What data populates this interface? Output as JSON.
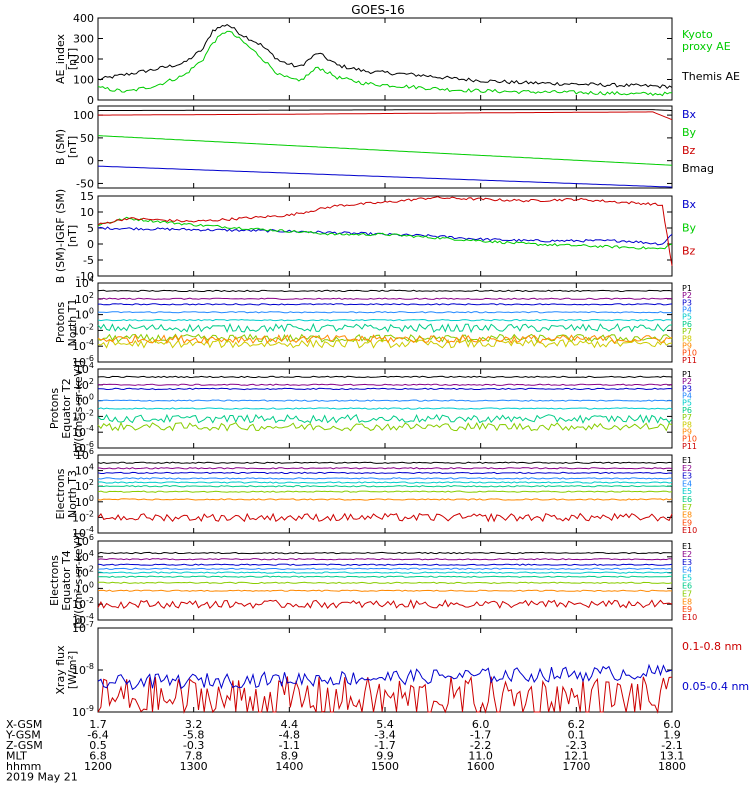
{
  "title": "GOES-16",
  "time": {
    "start": "2019-05-21 12:00",
    "end": "2019-05-21 18:00",
    "date_label": "2019 May 21",
    "hour_ticks": [
      "1200",
      "1300",
      "1400",
      "1500",
      "1600",
      "1700",
      "1800"
    ]
  },
  "footer": {
    "rows": [
      {
        "label": "X-GSM",
        "values": [
          "1.7",
          "3.2",
          "4.4",
          "5.4",
          "6.0",
          "6.2",
          "6.0"
        ]
      },
      {
        "label": "Y-GSM",
        "values": [
          "-6.4",
          "-5.8",
          "-4.8",
          "-3.4",
          "-1.7",
          "0.1",
          "1.9"
        ]
      },
      {
        "label": "Z-GSM",
        "values": [
          "0.5",
          "-0.3",
          "-1.1",
          "-1.7",
          "-2.2",
          "-2.3",
          "-2.1"
        ]
      },
      {
        "label": "MLT",
        "values": [
          "6.8",
          "7.8",
          "8.9",
          "9.9",
          "11.0",
          "12.1",
          "13.1"
        ]
      },
      {
        "label": "hhmm",
        "values": [
          "1200",
          "1300",
          "1400",
          "1500",
          "1600",
          "1700",
          "1800"
        ]
      }
    ]
  },
  "chart_data": [
    {
      "type": "line",
      "ylabel": [
        "AE_index",
        "[nT]"
      ],
      "ylim": [
        0,
        400
      ],
      "yscale": "linear",
      "yticks": [
        "0",
        "100",
        "200",
        "300",
        "400"
      ],
      "series": [
        {
          "name": "Themis AE",
          "color": "#000000",
          "x": [
            12,
            12.3,
            12.6,
            12.9,
            13.1,
            13.2,
            13.35,
            13.5,
            13.7,
            13.9,
            14.1,
            14.3,
            14.5,
            14.8,
            15.1,
            15.4,
            15.7,
            16.0,
            16.4,
            16.8,
            17.2,
            17.6,
            18.0
          ],
          "y": [
            100,
            125,
            150,
            180,
            250,
            340,
            370,
            320,
            270,
            190,
            160,
            230,
            170,
            140,
            130,
            120,
            105,
            95,
            85,
            80,
            75,
            70,
            65
          ]
        },
        {
          "name": "Kyoto proxy AE",
          "color": "#00cc00",
          "x": [
            12,
            12.3,
            12.6,
            12.9,
            13.1,
            13.2,
            13.35,
            13.5,
            13.7,
            13.9,
            14.1,
            14.3,
            14.5,
            14.8,
            15.1,
            15.4,
            15.7,
            16.0,
            16.4,
            16.8,
            17.2,
            17.6,
            18.0
          ],
          "y": [
            60,
            40,
            70,
            120,
            200,
            280,
            340,
            290,
            210,
            120,
            90,
            160,
            110,
            80,
            70,
            60,
            50,
            45,
            40,
            38,
            35,
            30,
            30
          ]
        }
      ]
    },
    {
      "type": "line",
      "ylabel": [
        "B (SM)",
        "[nT]"
      ],
      "ylim": [
        -60,
        120
      ],
      "yscale": "linear",
      "yticks": [
        "-50",
        "0",
        "50",
        "100"
      ],
      "series": [
        {
          "name": "Bx",
          "color": "#0000cc",
          "x": [
            12,
            18
          ],
          "y": [
            -12,
            -58
          ]
        },
        {
          "name": "By",
          "color": "#00cc00",
          "x": [
            12,
            18
          ],
          "y": [
            55,
            -10
          ]
        },
        {
          "name": "Bz",
          "color": "#cc0000",
          "x": [
            12,
            14,
            16,
            17.8,
            18
          ],
          "y": [
            100,
            102,
            105,
            107,
            90
          ]
        },
        {
          "name": "Bmag",
          "color": "#000000",
          "x": [
            12,
            14,
            16,
            17.8,
            18
          ],
          "y": [
            110,
            111,
            112,
            112,
            110
          ]
        }
      ]
    },
    {
      "type": "line",
      "ylabel": [
        "B (SM)-IGRF (SM)",
        "[nT]"
      ],
      "ylim": [
        -10,
        15
      ],
      "yscale": "linear",
      "yticks": [
        "-10",
        "-5",
        "0",
        "5",
        "10",
        "15"
      ],
      "series": [
        {
          "name": "Bx",
          "color": "#0000cc",
          "x": [
            12,
            13,
            14,
            14.5,
            15,
            15.5,
            16,
            16.5,
            17,
            17.5,
            17.9,
            18
          ],
          "y": [
            5,
            4.5,
            4,
            3.5,
            3,
            2.5,
            1.5,
            1,
            1,
            1,
            0,
            3
          ]
        },
        {
          "name": "By",
          "color": "#00cc00",
          "x": [
            12,
            12.3,
            13,
            14,
            14.5,
            15,
            15.5,
            16,
            16.5,
            17,
            17.5,
            17.9,
            18
          ],
          "y": [
            6,
            8,
            6,
            4,
            3,
            3,
            2,
            1,
            0,
            -0.5,
            -1,
            -1.5,
            0
          ]
        },
        {
          "name": "Bz",
          "color": "#cc0000",
          "x": [
            12,
            12.3,
            13,
            14,
            14.5,
            15,
            15.5,
            16,
            16.5,
            17,
            17.5,
            17.8,
            17.9,
            18
          ],
          "y": [
            6,
            8,
            7,
            9,
            12,
            13,
            14.5,
            14,
            13.5,
            14,
            13,
            12.5,
            12,
            -7
          ]
        }
      ]
    },
    {
      "type": "line",
      "ylabel": [
        "Protons",
        "North T1"
      ],
      "yscale": "log",
      "ylim_exp": [
        -6,
        4
      ],
      "ytick_exps": [
        -6,
        -4,
        -2,
        0,
        2,
        4
      ],
      "series": [
        {
          "name": "P1",
          "color": "#000000",
          "value": "1e3"
        },
        {
          "name": "P2",
          "color": "#880088",
          "value": "1e2"
        },
        {
          "name": "P3",
          "color": "#0000cc",
          "value": "2e1"
        },
        {
          "name": "P4",
          "color": "#2288ff",
          "value": "2"
        },
        {
          "name": "P5",
          "color": "#00cccc",
          "value": "0.2"
        },
        {
          "name": "P6",
          "color": "#00cc88",
          "value": "0.02"
        },
        {
          "name": "P7",
          "color": "#88cc00",
          "value": "1e-3"
        },
        {
          "name": "P8",
          "color": "#cccc00",
          "value": "2e-4"
        },
        {
          "name": "P9",
          "color": "#ff8800",
          "value": "8e-4"
        },
        {
          "name": "P10",
          "color": "#ff4400",
          "value": ""
        },
        {
          "name": "P11",
          "color": "#cc0000",
          "value": ""
        }
      ]
    },
    {
      "type": "line",
      "ylabel": [
        "Protons",
        "Equator T2",
        "[p/(cm²-s-sr-keV)]"
      ],
      "yscale": "log",
      "ylim_exp": [
        -6,
        4
      ],
      "ytick_exps": [
        -6,
        -4,
        -2,
        0,
        2,
        4
      ],
      "series": [
        {
          "name": "P1",
          "color": "#000000",
          "value": "1e3"
        },
        {
          "name": "P2",
          "color": "#880088",
          "value": "1e2"
        },
        {
          "name": "P3",
          "color": "#0000cc",
          "value": "3e1"
        },
        {
          "name": "P4",
          "color": "#2288ff",
          "value": "1"
        },
        {
          "name": "P5",
          "color": "#00cccc",
          "value": "0.1"
        },
        {
          "name": "P6",
          "color": "#00cc88",
          "value": "5e-3"
        },
        {
          "name": "P7",
          "color": "#88cc00",
          "value": "5e-4"
        },
        {
          "name": "P8",
          "color": "#cccc00",
          "value": ""
        },
        {
          "name": "P9",
          "color": "#ff8800",
          "value": ""
        },
        {
          "name": "P10",
          "color": "#ff4400",
          "value": ""
        },
        {
          "name": "P11",
          "color": "#cc0000",
          "value": ""
        }
      ]
    },
    {
      "type": "line",
      "ylabel": [
        "Electrons",
        "North T3"
      ],
      "yscale": "log",
      "ylim_exp": [
        -4,
        6
      ],
      "ytick_exps": [
        -4,
        -2,
        0,
        2,
        4,
        6
      ],
      "series": [
        {
          "name": "E1",
          "color": "#000000",
          "value": "1e5"
        },
        {
          "name": "E2",
          "color": "#880088",
          "value": "2e4"
        },
        {
          "name": "E3",
          "color": "#0000cc",
          "value": "5e3"
        },
        {
          "name": "E4",
          "color": "#2288ff",
          "value": "1e3"
        },
        {
          "name": "E5",
          "color": "#00cccc",
          "value": "3e2"
        },
        {
          "name": "E6",
          "color": "#00cc88",
          "value": "1e2"
        },
        {
          "name": "E7",
          "color": "#88cc00",
          "value": "2e1"
        },
        {
          "name": "E8",
          "color": "#ff8800",
          "value": "2"
        },
        {
          "name": "E9",
          "color": "#ff4400",
          "value": ""
        },
        {
          "name": "E10",
          "color": "#cc0000",
          "value": "1e-2"
        }
      ]
    },
    {
      "type": "line",
      "ylabel": [
        "Electrons",
        "Equator T4",
        "[e/(cm²-s-sr-keV)]"
      ],
      "yscale": "log",
      "ylim_exp": [
        -4,
        6
      ],
      "ytick_exps": [
        -4,
        -2,
        0,
        2,
        4,
        6
      ],
      "series": [
        {
          "name": "E1",
          "color": "#000000",
          "value": "3e4"
        },
        {
          "name": "E2",
          "color": "#880088",
          "value": "5e3"
        },
        {
          "name": "E3",
          "color": "#0000cc",
          "value": "1e3"
        },
        {
          "name": "E4",
          "color": "#2288ff",
          "value": "3e2"
        },
        {
          "name": "E5",
          "color": "#00cccc",
          "value": "1e2"
        },
        {
          "name": "E6",
          "color": "#00cc88",
          "value": "3e1"
        },
        {
          "name": "E7",
          "color": "#88cc00",
          "value": "5"
        },
        {
          "name": "E8",
          "color": "#ff8800",
          "value": "5e-1"
        },
        {
          "name": "E9",
          "color": "#ff4400",
          "value": ""
        },
        {
          "name": "E10",
          "color": "#cc0000",
          "value": "1e-2"
        }
      ]
    },
    {
      "type": "line",
      "ylabel": [
        "Xray flux",
        "[W/m²]"
      ],
      "yscale": "log",
      "ylim_exp": [
        -9,
        -7
      ],
      "ytick_exps": [
        -9,
        -8,
        -7
      ],
      "series": [
        {
          "name": "0.1-0.8 nm",
          "color": "#cc0000",
          "value": "2e-9"
        },
        {
          "name": "0.05-0.4 nm",
          "color": "#0000cc",
          "value": "5e-9"
        }
      ]
    }
  ],
  "colors": {
    "axis": "#000000"
  }
}
